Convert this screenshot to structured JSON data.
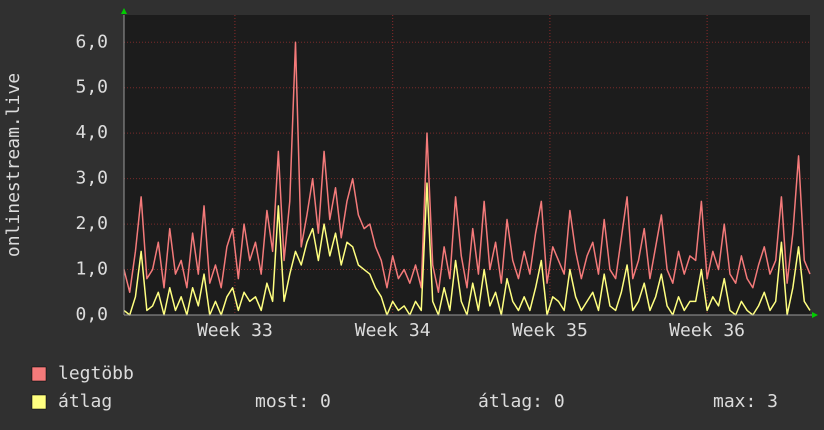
{
  "chart_data": {
    "type": "line",
    "y_label": "onlinestream.live",
    "xlim": [
      0,
      120
    ],
    "xticks": [
      {
        "value": 19.4,
        "label": "Week 33"
      },
      {
        "value": 47,
        "label": "Week 34"
      },
      {
        "value": 74.5,
        "label": "Week 35"
      },
      {
        "value": 102,
        "label": "Week 36"
      }
    ],
    "ylim": [
      0,
      6.6
    ],
    "yticks": [
      {
        "value": 0,
        "label": "0,0"
      },
      {
        "value": 1,
        "label": "1,0"
      },
      {
        "value": 2,
        "label": "2,0"
      },
      {
        "value": 3,
        "label": "3,0"
      },
      {
        "value": 4,
        "label": "4,0"
      },
      {
        "value": 5,
        "label": "5,0"
      },
      {
        "value": 6,
        "label": "6,0"
      }
    ],
    "grid": true,
    "series": [
      {
        "name": "legtöbb",
        "color": "#f47a7a",
        "values": [
          1.0,
          0.5,
          1.4,
          2.6,
          0.8,
          1.0,
          1.6,
          0.6,
          1.9,
          0.9,
          1.2,
          0.6,
          1.8,
          0.9,
          2.4,
          0.7,
          1.1,
          0.6,
          1.5,
          1.9,
          0.8,
          2.0,
          1.2,
          1.6,
          0.9,
          2.3,
          1.4,
          3.6,
          1.2,
          2.5,
          6.0,
          1.5,
          2.2,
          3.0,
          1.8,
          3.6,
          2.1,
          2.8,
          1.7,
          2.5,
          3.0,
          2.2,
          1.9,
          2.0,
          1.5,
          1.2,
          0.6,
          1.3,
          0.8,
          1.0,
          0.7,
          1.1,
          0.6,
          4.0,
          1.1,
          0.5,
          1.5,
          0.8,
          2.6,
          1.3,
          0.6,
          1.9,
          0.9,
          2.5,
          1.0,
          1.6,
          0.7,
          2.1,
          1.2,
          0.8,
          1.4,
          0.9,
          1.8,
          2.5,
          0.7,
          1.5,
          1.2,
          0.9,
          2.3,
          1.4,
          0.8,
          1.3,
          1.6,
          0.9,
          2.1,
          1.0,
          0.8,
          1.7,
          2.6,
          0.8,
          1.2,
          1.9,
          0.8,
          1.5,
          2.2,
          1.0,
          0.7,
          1.4,
          0.9,
          1.3,
          1.2,
          2.5,
          0.8,
          1.4,
          1.0,
          2.0,
          0.9,
          0.7,
          1.3,
          0.8,
          0.6,
          1.1,
          1.5,
          0.9,
          1.2,
          2.6,
          0.7,
          1.8,
          3.5,
          1.2,
          0.9
        ]
      },
      {
        "name": "átlag",
        "color": "#ffff80",
        "values": [
          0.1,
          0.0,
          0.4,
          1.4,
          0.1,
          0.2,
          0.5,
          0.0,
          0.6,
          0.1,
          0.4,
          0.0,
          0.6,
          0.2,
          0.9,
          0.0,
          0.3,
          0.0,
          0.4,
          0.6,
          0.1,
          0.5,
          0.3,
          0.4,
          0.1,
          0.7,
          0.3,
          2.4,
          0.3,
          0.9,
          1.4,
          1.1,
          1.6,
          1.9,
          1.2,
          2.0,
          1.3,
          1.8,
          1.1,
          1.6,
          1.5,
          1.1,
          1.0,
          0.9,
          0.6,
          0.4,
          0.0,
          0.3,
          0.1,
          0.2,
          0.0,
          0.3,
          0.1,
          2.9,
          0.3,
          0.0,
          0.6,
          0.1,
          1.2,
          0.3,
          0.0,
          0.7,
          0.1,
          1.0,
          0.2,
          0.5,
          0.0,
          0.8,
          0.3,
          0.1,
          0.4,
          0.1,
          0.6,
          1.2,
          0.0,
          0.4,
          0.3,
          0.1,
          1.0,
          0.4,
          0.1,
          0.3,
          0.5,
          0.1,
          0.9,
          0.2,
          0.1,
          0.5,
          1.1,
          0.1,
          0.3,
          0.7,
          0.1,
          0.4,
          0.9,
          0.2,
          0.0,
          0.4,
          0.1,
          0.3,
          0.3,
          1.0,
          0.1,
          0.4,
          0.2,
          0.8,
          0.1,
          0.0,
          0.3,
          0.1,
          0.0,
          0.2,
          0.5,
          0.1,
          0.3,
          1.6,
          0.0,
          0.6,
          1.5,
          0.3,
          0.1
        ]
      }
    ],
    "legend_stats": [
      "most: 0",
      "átlag: 0",
      "max: 3"
    ]
  }
}
